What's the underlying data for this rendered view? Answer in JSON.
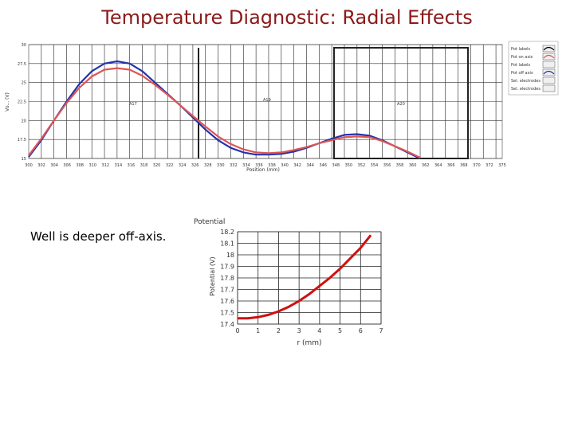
{
  "slide": {
    "title": "Temperature Diagnostic: Radial Effects",
    "note": "Well is deeper off-axis."
  },
  "chart_data": [
    {
      "type": "line",
      "xlabel": "Position (mm)",
      "ylabel": "Vo... (V)",
      "ylim": [
        15,
        30
      ],
      "xlim": [
        300,
        375
      ],
      "yticks": [
        "30",
        "27.5",
        "25",
        "22.5",
        "20",
        "17.5",
        "15"
      ],
      "xticks": [
        "300",
        "302",
        "304",
        "306",
        "308",
        "310",
        "312",
        "314",
        "316",
        "318",
        "320",
        "322",
        "324",
        "326",
        "328",
        "330",
        "332",
        "334",
        "336",
        "338",
        "340",
        "342",
        "344",
        "346",
        "348",
        "350",
        "352",
        "354",
        "356",
        "358",
        "360",
        "362",
        "364",
        "366",
        "368",
        "370",
        "372",
        "375"
      ],
      "region_labels": [
        "A17",
        "A19",
        "A20"
      ],
      "legend": [
        "Pot labels",
        "Pot on axis",
        "Pot labels",
        "Pot off axis",
        "Sel. electrodes",
        "Sel. electrodes"
      ],
      "series": [
        {
          "color": "#2233aa",
          "x": [
            300,
            302,
            304,
            306,
            308,
            310,
            312,
            314,
            316,
            318,
            320,
            322,
            324,
            326,
            328,
            330,
            332,
            334,
            336,
            338,
            340,
            342,
            344,
            346,
            348,
            350,
            352,
            354,
            356,
            358,
            360,
            362
          ],
          "y": [
            15.2,
            17.4,
            20.0,
            22.5,
            24.8,
            26.5,
            27.5,
            27.8,
            27.5,
            26.5,
            25.0,
            23.5,
            22.0,
            20.4,
            18.8,
            17.4,
            16.4,
            15.8,
            15.5,
            15.5,
            15.6,
            15.9,
            16.4,
            17.0,
            17.6,
            18.1,
            18.2,
            18.0,
            17.4,
            16.6,
            15.8,
            15.0
          ]
        },
        {
          "color": "#dd5555",
          "x": [
            300,
            302,
            304,
            306,
            308,
            310,
            312,
            314,
            316,
            318,
            320,
            322,
            324,
            326,
            328,
            330,
            332,
            334,
            336,
            338,
            340,
            342,
            344,
            346,
            348,
            350,
            352,
            354,
            356,
            358,
            360,
            362
          ],
          "y": [
            15.4,
            17.6,
            20.0,
            22.3,
            24.3,
            25.8,
            26.7,
            26.9,
            26.7,
            25.9,
            24.7,
            23.4,
            22.0,
            20.6,
            19.2,
            17.9,
            16.9,
            16.2,
            15.8,
            15.7,
            15.8,
            16.1,
            16.5,
            17.0,
            17.4,
            17.8,
            17.9,
            17.8,
            17.3,
            16.6,
            15.9,
            15.1
          ]
        }
      ]
    },
    {
      "type": "line",
      "title": "Potential",
      "xlabel": "r (mm)",
      "ylabel": "Potential (V)",
      "xlim": [
        0,
        7
      ],
      "ylim": [
        17.4,
        18.2
      ],
      "xticks": [
        "0",
        "1",
        "2",
        "3",
        "4",
        "5",
        "6",
        "7"
      ],
      "yticks": [
        "18.2",
        "18.1",
        "18",
        "17.9",
        "17.8",
        "17.7",
        "17.6",
        "17.5",
        "17.4"
      ],
      "series": [
        {
          "color": "#cc1111",
          "x": [
            0,
            0.5,
            1,
            1.5,
            2,
            2.5,
            3,
            3.5,
            4,
            4.5,
            5,
            5.5,
            6,
            6.5
          ],
          "y": [
            17.45,
            17.45,
            17.46,
            17.48,
            17.51,
            17.55,
            17.6,
            17.66,
            17.73,
            17.8,
            17.88,
            17.97,
            18.06,
            18.17
          ]
        }
      ]
    }
  ]
}
